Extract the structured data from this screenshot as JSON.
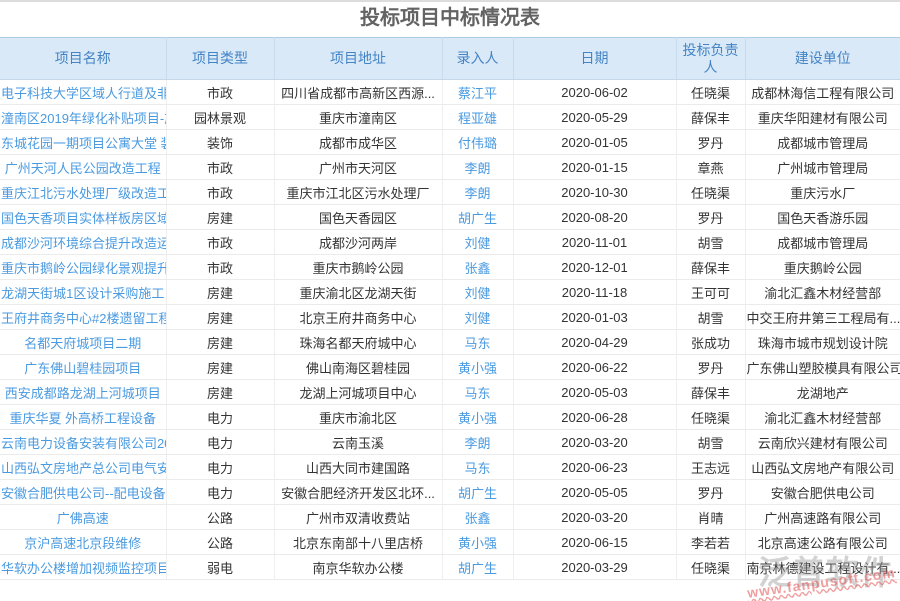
{
  "title": "投标项目中标情况表",
  "watermark": {
    "brand": "泛普软件",
    "url": "www.fanpusoft.com"
  },
  "table": {
    "columns": [
      "项目名称",
      "项目类型",
      "项目地址",
      "录入人",
      "日期",
      "投标负责人",
      "建设单位"
    ],
    "rows": [
      {
        "name": "电子科技大学区域人行道及非",
        "type": "市政",
        "address": "四川省成都市高新区西源...",
        "recorder": "蔡江平",
        "date": "2020-06-02",
        "manager": "任晓渠",
        "builder": "成都林海信工程有限公司"
      },
      {
        "name": "潼南区2019年绿化补贴项目-施",
        "type": "园林景观",
        "address": "重庆市潼南区",
        "recorder": "程亚雄",
        "date": "2020-05-29",
        "manager": "薛保丰",
        "builder": "重庆华阳建材有限公司"
      },
      {
        "name": "东城花园一期项目公寓大堂 装",
        "type": "装饰",
        "address": "成都市成华区",
        "recorder": "付伟璐",
        "date": "2020-01-05",
        "manager": "罗丹",
        "builder": "成都城市管理局"
      },
      {
        "name": "广州天河人民公园改造工程",
        "type": "市政",
        "address": "广州市天河区",
        "recorder": "李朗",
        "date": "2020-01-15",
        "manager": "章燕",
        "builder": "广州城市管理局"
      },
      {
        "name": "重庆江北污水处理厂级改造工",
        "type": "市政",
        "address": "重庆市江北区污水处理厂",
        "recorder": "李朗",
        "date": "2020-10-30",
        "manager": "任晓渠",
        "builder": "重庆污水厂"
      },
      {
        "name": "国色天香项目实体样板房区域",
        "type": "房建",
        "address": "国色天香园区",
        "recorder": "胡广生",
        "date": "2020-08-20",
        "manager": "罗丹",
        "builder": "国色天香游乐园"
      },
      {
        "name": "成都沙河环境综合提升改造运",
        "type": "市政",
        "address": "成都沙河两岸",
        "recorder": "刘健",
        "date": "2020-11-01",
        "manager": "胡雪",
        "builder": "成都城市管理局"
      },
      {
        "name": "重庆市鹅岭公园绿化景观提升",
        "type": "市政",
        "address": "重庆市鹅岭公园",
        "recorder": "张鑫",
        "date": "2020-12-01",
        "manager": "薛保丰",
        "builder": "重庆鹅岭公园"
      },
      {
        "name": "龙湖天街城1区设计采购施工",
        "type": "房建",
        "address": "重庆渝北区龙湖天街",
        "recorder": "刘健",
        "date": "2020-11-18",
        "manager": "王可可",
        "builder": "渝北汇鑫木材经营部"
      },
      {
        "name": "王府井商务中心#2楼遗留工程",
        "type": "房建",
        "address": "北京王府井商务中心",
        "recorder": "刘健",
        "date": "2020-01-03",
        "manager": "胡雪",
        "builder": "中交王府井第三工程局有..."
      },
      {
        "name": "名都天府城项目二期",
        "type": "房建",
        "address": "珠海名都天府城中心",
        "recorder": "马东",
        "date": "2020-04-29",
        "manager": "张成功",
        "builder": "珠海市城市规划设计院"
      },
      {
        "name": "广东佛山碧桂园项目",
        "type": "房建",
        "address": "佛山南海区碧桂园",
        "recorder": "黄小强",
        "date": "2020-06-22",
        "manager": "罗丹",
        "builder": "广东佛山塑胶模具有限公司"
      },
      {
        "name": "西安成都路龙湖上河城项目",
        "type": "房建",
        "address": "龙湖上河城项目中心",
        "recorder": "马东",
        "date": "2020-05-03",
        "manager": "薛保丰",
        "builder": "龙湖地产"
      },
      {
        "name": "重庆华夏 外高桥工程设备",
        "type": "电力",
        "address": "重庆市渝北区",
        "recorder": "黄小强",
        "date": "2020-06-28",
        "manager": "任晓渠",
        "builder": "渝北汇鑫木材经营部"
      },
      {
        "name": "云南电力设备安装有限公司20",
        "type": "电力",
        "address": "云南玉溪",
        "recorder": "李朗",
        "date": "2020-03-20",
        "manager": "胡雪",
        "builder": "云南欣兴建材有限公司"
      },
      {
        "name": "山西弘文房地产总公司电气安",
        "type": "电力",
        "address": "山西大同市建国路",
        "recorder": "马东",
        "date": "2020-06-23",
        "manager": "王志远",
        "builder": "山西弘文房地产有限公司"
      },
      {
        "name": "安徽合肥供电公司--配电设备检",
        "type": "电力",
        "address": "安徽合肥经济开发区北环...",
        "recorder": "胡广生",
        "date": "2020-05-05",
        "manager": "罗丹",
        "builder": "安徽合肥供电公司"
      },
      {
        "name": "广佛高速",
        "type": "公路",
        "address": "广州市双清收费站",
        "recorder": "张鑫",
        "date": "2020-03-20",
        "manager": "肖晴",
        "builder": "广州高速路有限公司"
      },
      {
        "name": "京沪高速北京段维修",
        "type": "公路",
        "address": "北京东南部十八里店桥",
        "recorder": "黄小强",
        "date": "2020-06-15",
        "manager": "李若若",
        "builder": "北京高速公路有限公司"
      },
      {
        "name": "华软办公楼增加视频监控项目",
        "type": "弱电",
        "address": "南京华软办公楼",
        "recorder": "胡广生",
        "date": "2020-03-29",
        "manager": "任晓渠",
        "builder": "南京林德建设工程设计有..."
      }
    ]
  }
}
